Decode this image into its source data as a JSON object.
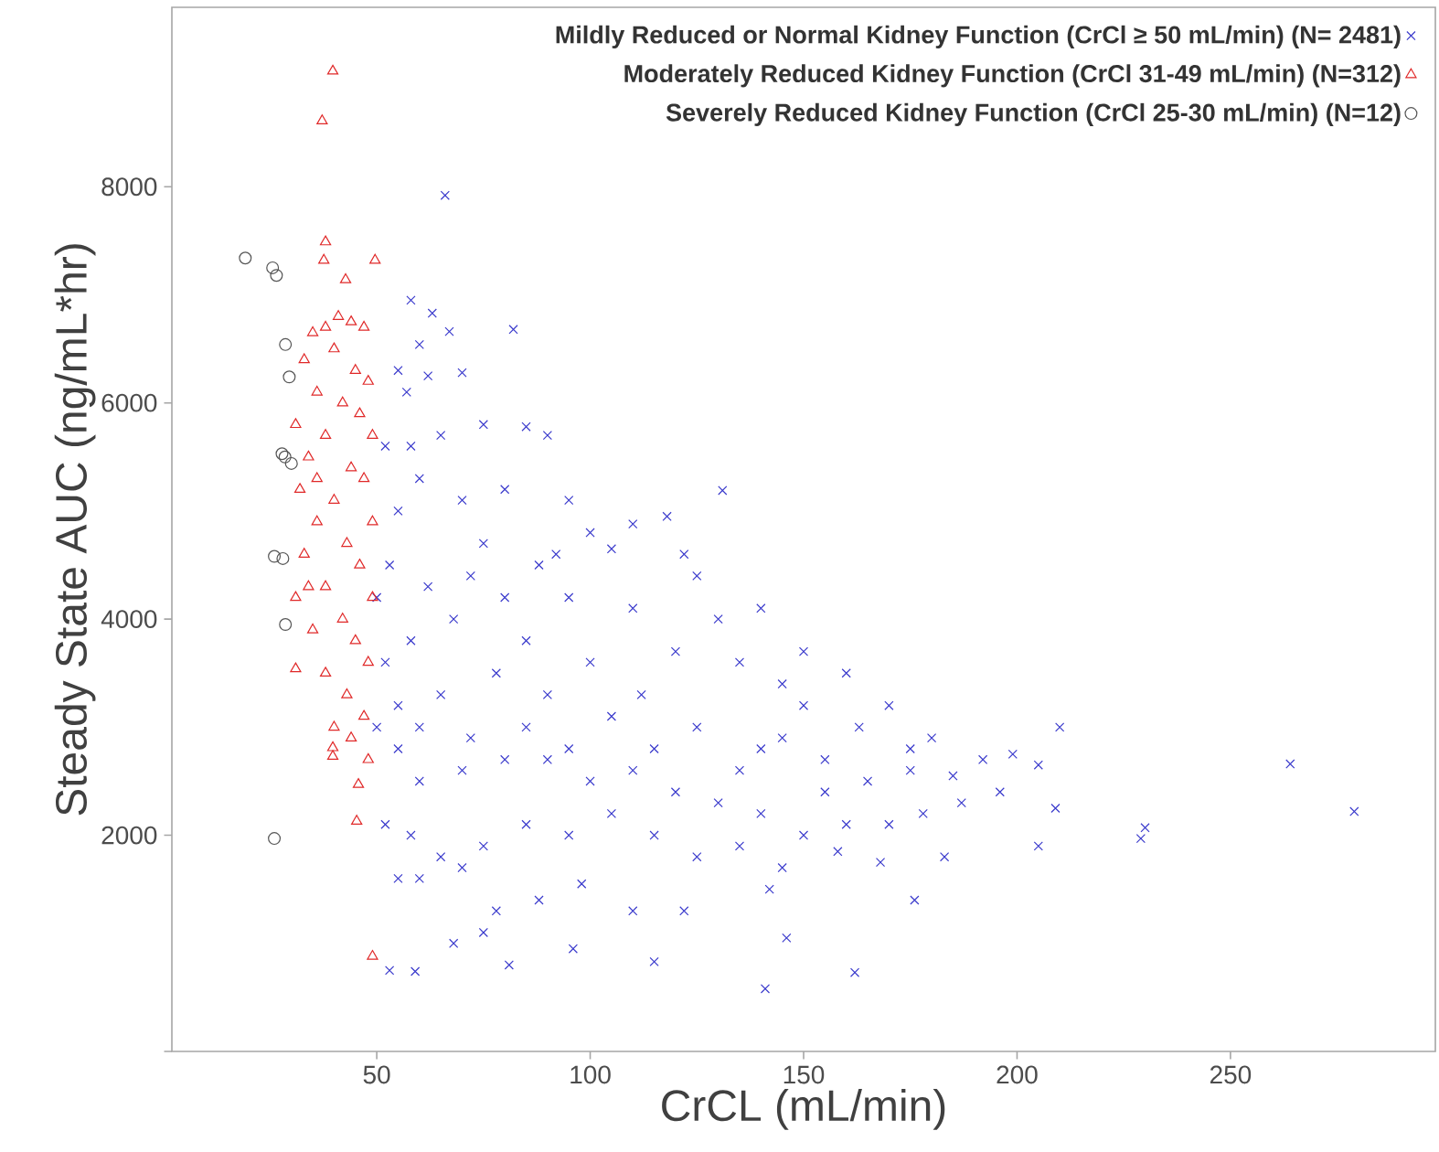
{
  "chart_data": {
    "type": "scatter",
    "xlabel": "CrCL (mL/min)",
    "ylabel": "Steady State AUC (ng/mL*hr)",
    "xlim": [
      2,
      298
    ],
    "ylim": [
      0,
      9660
    ],
    "xticks": [
      50,
      100,
      150,
      200,
      250
    ],
    "yticks": [
      {
        "value": 0,
        "label": null
      },
      2000,
      4000,
      6000,
      8000
    ],
    "grid": false,
    "legend": "top right",
    "series": [
      {
        "name": "Mildly Reduced or Normal Kidney Function (CrCl ≥ 50 mL/min) (N= 2481)",
        "color": "#3a3acc",
        "marker": "cross",
        "x": [
          66,
          58,
          63,
          67,
          82,
          60,
          55,
          62,
          70,
          57,
          75,
          85,
          90,
          65,
          52,
          131,
          100,
          110,
          118,
          80,
          95,
          105,
          125,
          122,
          60,
          70,
          55,
          75,
          88,
          53,
          62,
          68,
          58,
          80,
          95,
          110,
          130,
          140,
          150,
          160,
          170,
          145,
          135,
          120,
          100,
          90,
          78,
          65,
          55,
          52,
          60,
          72,
          85,
          95,
          105,
          115,
          125,
          135,
          145,
          155,
          165,
          175,
          180,
          185,
          192,
          196,
          199,
          205,
          210,
          209,
          205,
          187,
          178,
          170,
          160,
          150,
          140,
          130,
          120,
          110,
          100,
          90,
          80,
          70,
          60,
          55,
          52,
          58,
          65,
          75,
          85,
          95,
          105,
          115,
          125,
          135,
          145,
          158,
          168,
          176,
          183,
          142,
          146,
          55,
          60,
          70,
          78,
          88,
          98,
          110,
          122,
          53,
          59,
          81,
          96,
          115,
          141,
          162,
          68,
          75,
          230,
          229,
          264,
          279,
          155,
          163,
          150,
          175,
          140,
          112,
          85,
          72,
          92,
          58,
          50,
          50
        ],
        "values": [
          7920,
          6950,
          6830,
          6660,
          6680,
          6540,
          6300,
          6250,
          6280,
          6100,
          5800,
          5780,
          5700,
          5700,
          5600,
          5190,
          4800,
          4880,
          4950,
          5200,
          5100,
          4650,
          4400,
          4600,
          5300,
          5100,
          5000,
          4700,
          4500,
          4500,
          4300,
          4000,
          3800,
          4200,
          4200,
          4100,
          4000,
          4100,
          3700,
          3500,
          3200,
          3400,
          3600,
          3700,
          3600,
          3300,
          3500,
          3300,
          3200,
          3600,
          3000,
          2900,
          3000,
          2800,
          3100,
          2800,
          3000,
          2600,
          2900,
          2700,
          2500,
          2600,
          2900,
          2550,
          2700,
          2400,
          2750,
          2650,
          3000,
          2250,
          1900,
          2300,
          2200,
          2100,
          2100,
          2000,
          2200,
          2300,
          2400,
          2600,
          2500,
          2700,
          2700,
          2600,
          2500,
          2800,
          2100,
          2000,
          1800,
          1900,
          2100,
          2000,
          2200,
          2000,
          1800,
          1900,
          1700,
          1850,
          1750,
          1400,
          1800,
          1500,
          1050,
          1600,
          1600,
          1700,
          1300,
          1400,
          1550,
          1300,
          1300,
          750,
          740,
          800,
          950,
          830,
          580,
          730,
          1000,
          1100,
          2070,
          1970,
          2660,
          2220,
          2400,
          3000,
          3200,
          2800,
          2800,
          3300,
          3800,
          4400,
          4600,
          5600,
          4200,
          3000
        ]
      },
      {
        "name": "Moderately Reduced Kidney Function (CrCl 31-49 mL/min) (N=312)",
        "color": "#e02828",
        "marker": "triangle",
        "x": [
          39.7,
          37.2,
          38,
          37.6,
          49.6,
          42.7,
          35,
          38,
          41,
          44,
          47,
          33,
          40,
          45,
          48,
          36,
          42,
          46,
          31,
          38,
          49,
          34,
          44,
          47,
          32,
          40,
          36,
          49,
          43,
          33,
          46,
          38,
          31,
          49,
          42,
          35,
          45,
          48,
          31,
          38,
          43,
          47,
          40,
          44,
          48,
          39.7,
          39.7,
          45.7,
          45.3,
          49,
          34,
          36
        ],
        "values": [
          9070,
          8610,
          7490,
          7320,
          7320,
          7140,
          6650,
          6700,
          6800,
          6750,
          6700,
          6400,
          6500,
          6300,
          6200,
          6100,
          6000,
          5900,
          5800,
          5700,
          5700,
          5500,
          5400,
          5300,
          5200,
          5100,
          4900,
          4900,
          4700,
          4600,
          4500,
          4300,
          4200,
          4200,
          4000,
          3900,
          3800,
          3600,
          3540,
          3500,
          3300,
          3100,
          3000,
          2900,
          2700,
          2810,
          2730,
          2470,
          2130,
          880,
          4300,
          5300
        ]
      },
      {
        "name": "Severely Reduced Kidney Function (CrCl 25-30 mL/min) (N=12)",
        "color": "#555555",
        "marker": "circle",
        "x": [
          19.2,
          25.6,
          26.5,
          28.6,
          29.5,
          27.8,
          28.5,
          30,
          26,
          28,
          28.6,
          26
        ],
        "values": [
          7340,
          7250,
          7180,
          6540,
          6240,
          5530,
          5500,
          5440,
          4580,
          4560,
          3950,
          1970
        ]
      }
    ]
  }
}
